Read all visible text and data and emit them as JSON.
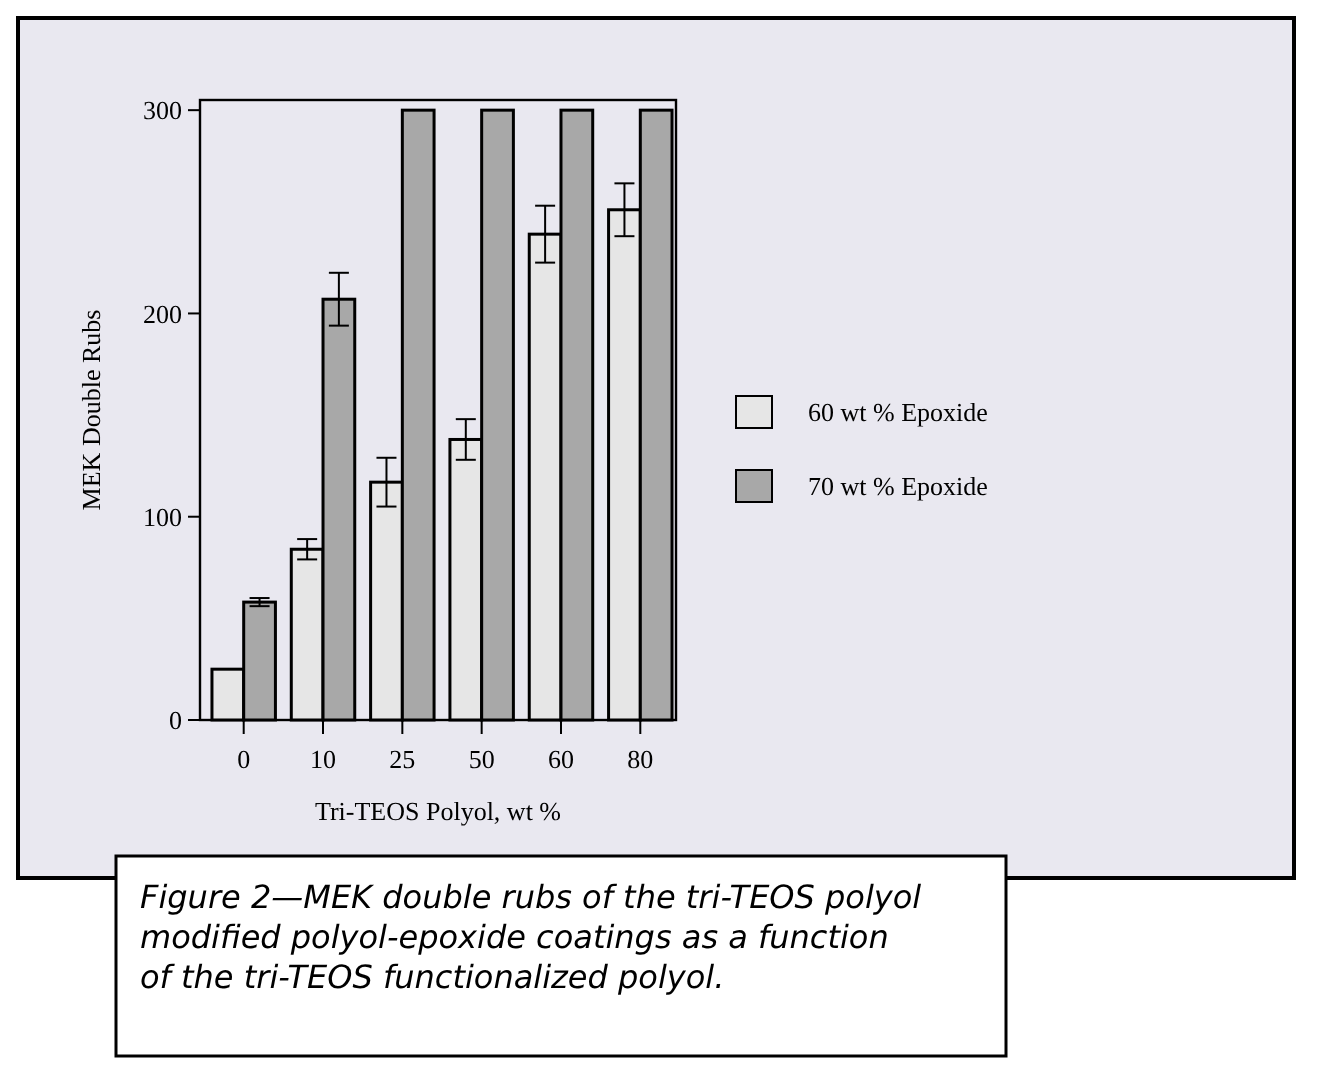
{
  "chart_data": {
    "type": "bar",
    "xlabel": "Tri-TEOS Polyol, wt %",
    "ylabel": "MEK Double Rubs",
    "categories": [
      "0",
      "10",
      "25",
      "50",
      "60",
      "80"
    ],
    "series": [
      {
        "name": "60 wt % Epoxide",
        "color": "#e6e6e6",
        "values": [
          25,
          84,
          117,
          138,
          239,
          251
        ],
        "errors": [
          null,
          5,
          12,
          10,
          14,
          13
        ]
      },
      {
        "name": "70 wt % Epoxide",
        "color": "#a8a8a8",
        "values": [
          58,
          207,
          300,
          300,
          300,
          300
        ],
        "errors": [
          2,
          13,
          null,
          null,
          null,
          null
        ]
      }
    ],
    "ylim": [
      0,
      305
    ],
    "yticks": [
      0,
      100,
      200,
      300
    ],
    "grid": false,
    "legend": "right",
    "annotations": [
      "Figure 2—MEK double rubs of the tri-TEOS polyol modified polyol-epoxide coatings as a function of the tri-TEOS functionalized polyol."
    ]
  }
}
